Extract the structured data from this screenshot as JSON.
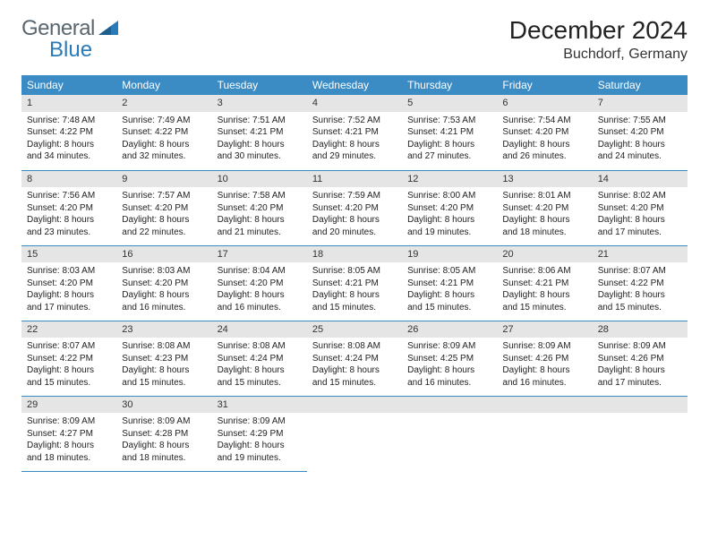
{
  "logo": {
    "part1": "General",
    "part2": "Blue"
  },
  "title": "December 2024",
  "location": "Buchdorf, Germany",
  "colors": {
    "header_bg": "#3b8bc4",
    "header_text": "#ffffff",
    "daynum_bg": "#e5e5e5",
    "border": "#3b8bc4",
    "logo_gray": "#5a6770",
    "logo_blue": "#2a7ab8"
  },
  "weekdays": [
    "Sunday",
    "Monday",
    "Tuesday",
    "Wednesday",
    "Thursday",
    "Friday",
    "Saturday"
  ],
  "weeks": [
    [
      {
        "n": "1",
        "sr": "7:48 AM",
        "ss": "4:22 PM",
        "dl": "8 hours and 34 minutes."
      },
      {
        "n": "2",
        "sr": "7:49 AM",
        "ss": "4:22 PM",
        "dl": "8 hours and 32 minutes."
      },
      {
        "n": "3",
        "sr": "7:51 AM",
        "ss": "4:21 PM",
        "dl": "8 hours and 30 minutes."
      },
      {
        "n": "4",
        "sr": "7:52 AM",
        "ss": "4:21 PM",
        "dl": "8 hours and 29 minutes."
      },
      {
        "n": "5",
        "sr": "7:53 AM",
        "ss": "4:21 PM",
        "dl": "8 hours and 27 minutes."
      },
      {
        "n": "6",
        "sr": "7:54 AM",
        "ss": "4:20 PM",
        "dl": "8 hours and 26 minutes."
      },
      {
        "n": "7",
        "sr": "7:55 AM",
        "ss": "4:20 PM",
        "dl": "8 hours and 24 minutes."
      }
    ],
    [
      {
        "n": "8",
        "sr": "7:56 AM",
        "ss": "4:20 PM",
        "dl": "8 hours and 23 minutes."
      },
      {
        "n": "9",
        "sr": "7:57 AM",
        "ss": "4:20 PM",
        "dl": "8 hours and 22 minutes."
      },
      {
        "n": "10",
        "sr": "7:58 AM",
        "ss": "4:20 PM",
        "dl": "8 hours and 21 minutes."
      },
      {
        "n": "11",
        "sr": "7:59 AM",
        "ss": "4:20 PM",
        "dl": "8 hours and 20 minutes."
      },
      {
        "n": "12",
        "sr": "8:00 AM",
        "ss": "4:20 PM",
        "dl": "8 hours and 19 minutes."
      },
      {
        "n": "13",
        "sr": "8:01 AM",
        "ss": "4:20 PM",
        "dl": "8 hours and 18 minutes."
      },
      {
        "n": "14",
        "sr": "8:02 AM",
        "ss": "4:20 PM",
        "dl": "8 hours and 17 minutes."
      }
    ],
    [
      {
        "n": "15",
        "sr": "8:03 AM",
        "ss": "4:20 PM",
        "dl": "8 hours and 17 minutes."
      },
      {
        "n": "16",
        "sr": "8:03 AM",
        "ss": "4:20 PM",
        "dl": "8 hours and 16 minutes."
      },
      {
        "n": "17",
        "sr": "8:04 AM",
        "ss": "4:20 PM",
        "dl": "8 hours and 16 minutes."
      },
      {
        "n": "18",
        "sr": "8:05 AM",
        "ss": "4:21 PM",
        "dl": "8 hours and 15 minutes."
      },
      {
        "n": "19",
        "sr": "8:05 AM",
        "ss": "4:21 PM",
        "dl": "8 hours and 15 minutes."
      },
      {
        "n": "20",
        "sr": "8:06 AM",
        "ss": "4:21 PM",
        "dl": "8 hours and 15 minutes."
      },
      {
        "n": "21",
        "sr": "8:07 AM",
        "ss": "4:22 PM",
        "dl": "8 hours and 15 minutes."
      }
    ],
    [
      {
        "n": "22",
        "sr": "8:07 AM",
        "ss": "4:22 PM",
        "dl": "8 hours and 15 minutes."
      },
      {
        "n": "23",
        "sr": "8:08 AM",
        "ss": "4:23 PM",
        "dl": "8 hours and 15 minutes."
      },
      {
        "n": "24",
        "sr": "8:08 AM",
        "ss": "4:24 PM",
        "dl": "8 hours and 15 minutes."
      },
      {
        "n": "25",
        "sr": "8:08 AM",
        "ss": "4:24 PM",
        "dl": "8 hours and 15 minutes."
      },
      {
        "n": "26",
        "sr": "8:09 AM",
        "ss": "4:25 PM",
        "dl": "8 hours and 16 minutes."
      },
      {
        "n": "27",
        "sr": "8:09 AM",
        "ss": "4:26 PM",
        "dl": "8 hours and 16 minutes."
      },
      {
        "n": "28",
        "sr": "8:09 AM",
        "ss": "4:26 PM",
        "dl": "8 hours and 17 minutes."
      }
    ],
    [
      {
        "n": "29",
        "sr": "8:09 AM",
        "ss": "4:27 PM",
        "dl": "8 hours and 18 minutes."
      },
      {
        "n": "30",
        "sr": "8:09 AM",
        "ss": "4:28 PM",
        "dl": "8 hours and 18 minutes."
      },
      {
        "n": "31",
        "sr": "8:09 AM",
        "ss": "4:29 PM",
        "dl": "8 hours and 19 minutes."
      },
      null,
      null,
      null,
      null
    ]
  ],
  "labels": {
    "sunrise": "Sunrise: ",
    "sunset": "Sunset: ",
    "daylight": "Daylight: "
  }
}
